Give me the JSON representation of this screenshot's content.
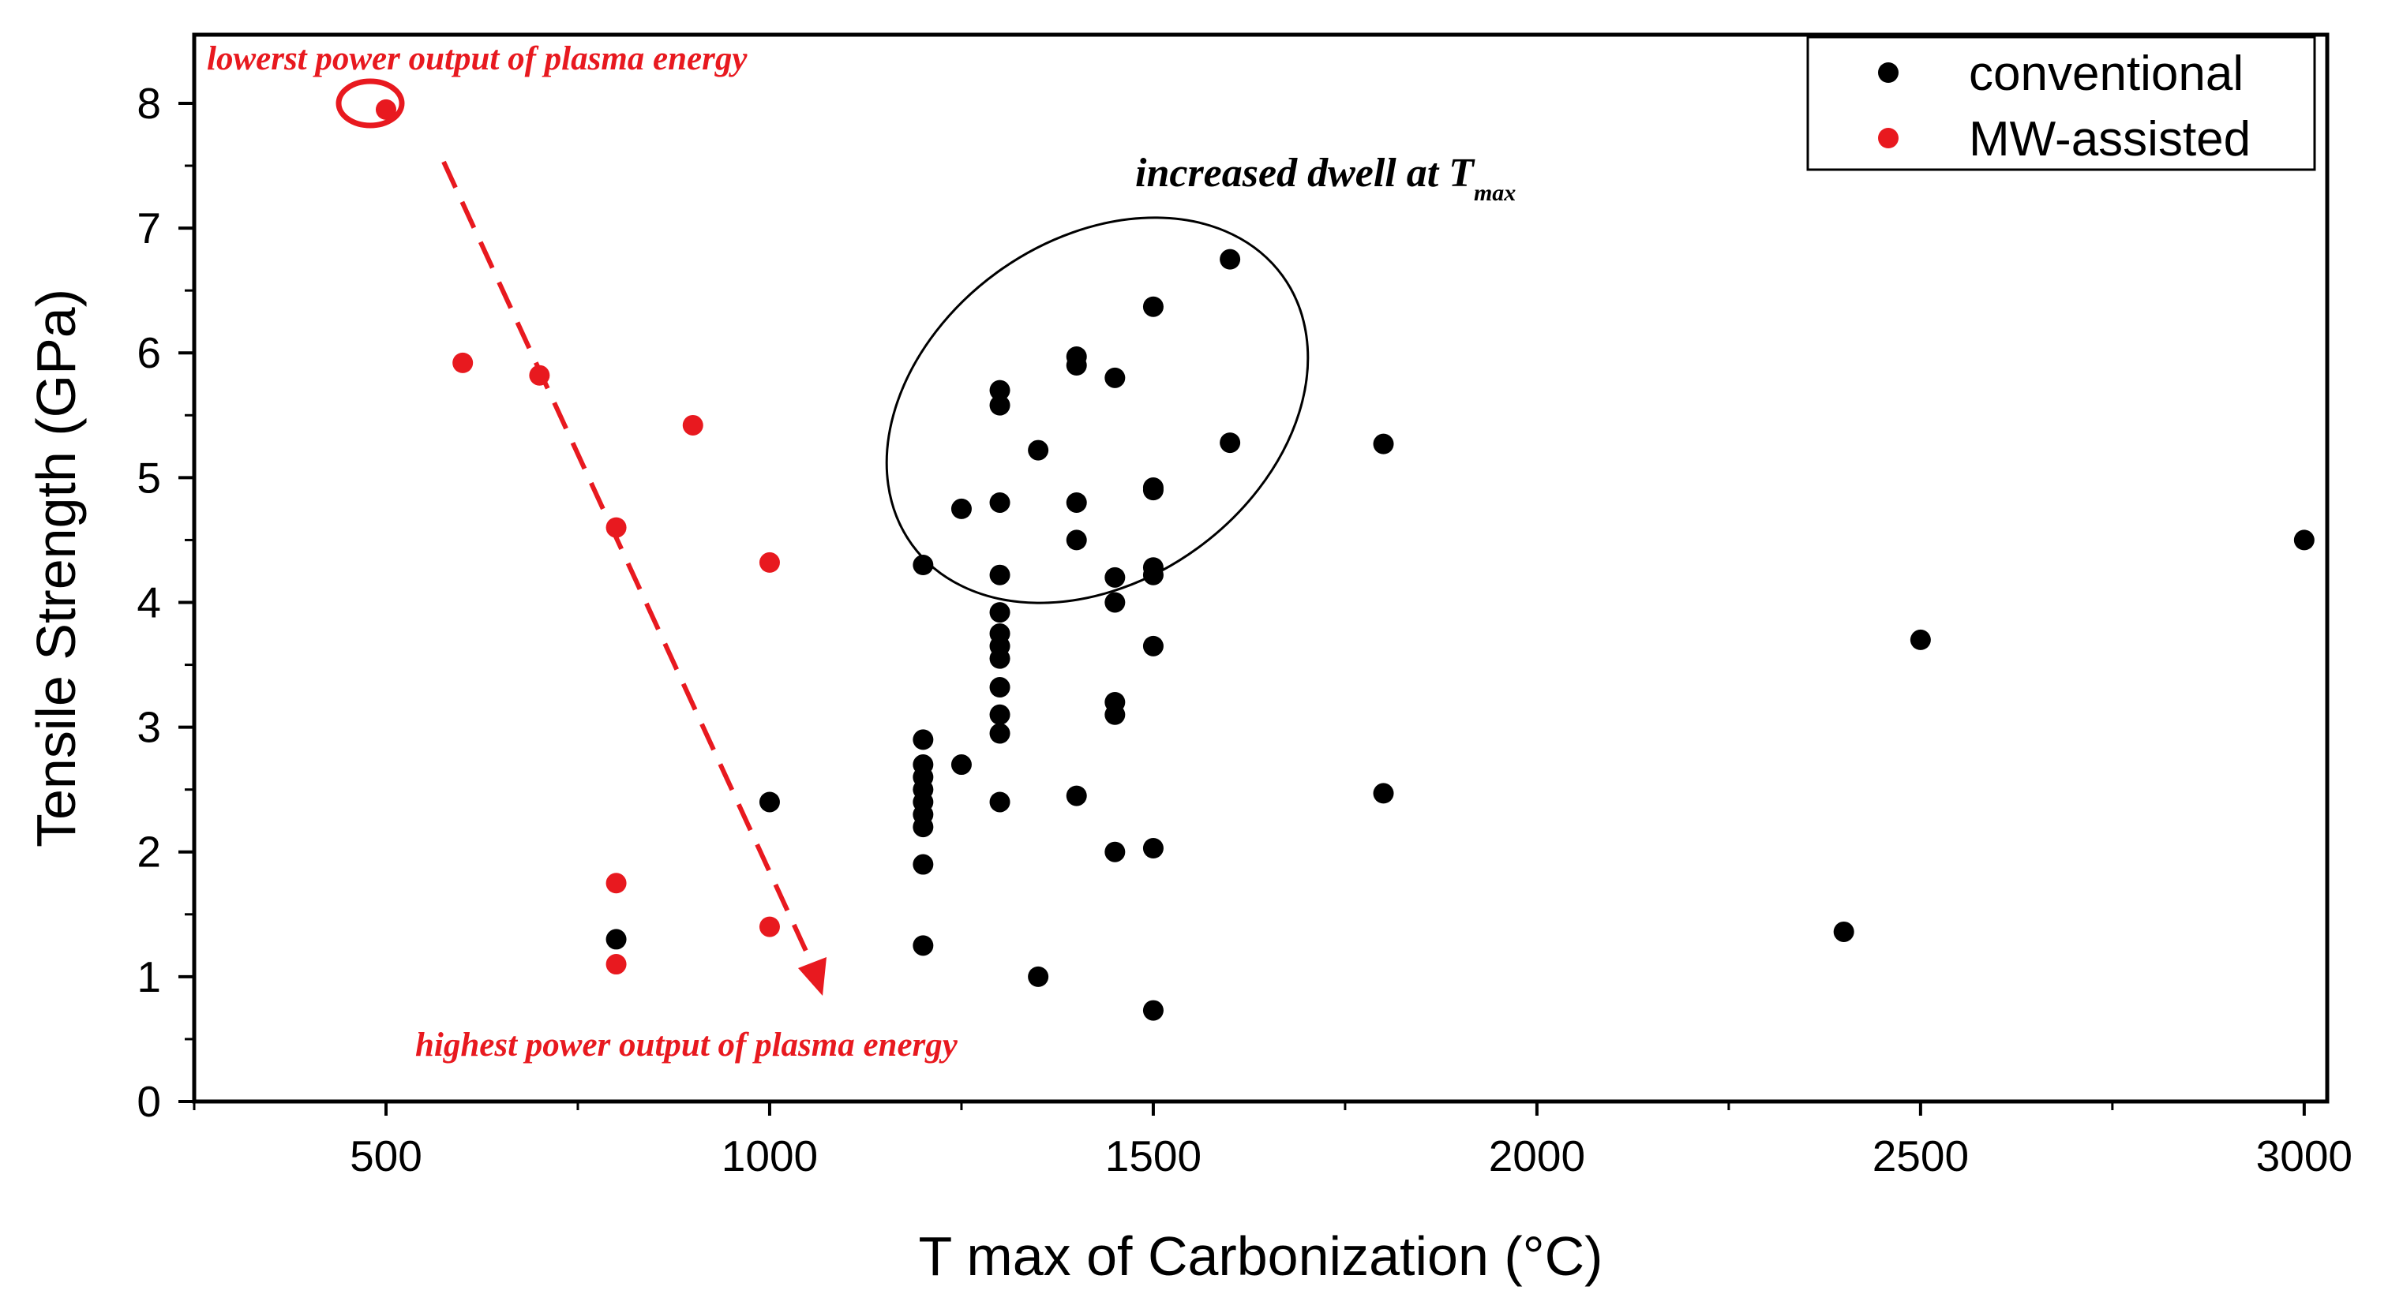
{
  "chart_data": {
    "type": "scatter",
    "xlabel": "T max of Carbonization (°C)",
    "ylabel": "Tensile Strength (GPa)",
    "xlim": [
      250,
      3030
    ],
    "ylim": [
      0,
      8.55
    ],
    "x_ticks": [
      500,
      1000,
      1500,
      2000,
      2500,
      3000
    ],
    "y_ticks": [
      0,
      1,
      2,
      3,
      4,
      5,
      6,
      7,
      8
    ],
    "grid": false,
    "legend_position": "top-right",
    "series": [
      {
        "name": "conventional",
        "color": "#000000",
        "points": [
          [
            800,
            1.3
          ],
          [
            1000,
            2.4
          ],
          [
            1200,
            4.3
          ],
          [
            1200,
            2.9
          ],
          [
            1200,
            2.7
          ],
          [
            1200,
            2.6
          ],
          [
            1200,
            2.5
          ],
          [
            1200,
            2.4
          ],
          [
            1200,
            2.3
          ],
          [
            1200,
            2.2
          ],
          [
            1200,
            1.9
          ],
          [
            1200,
            1.25
          ],
          [
            1250,
            4.75
          ],
          [
            1250,
            2.7
          ],
          [
            1300,
            5.7
          ],
          [
            1300,
            5.58
          ],
          [
            1300,
            4.8
          ],
          [
            1300,
            4.22
          ],
          [
            1300,
            3.92
          ],
          [
            1300,
            3.75
          ],
          [
            1300,
            3.65
          ],
          [
            1300,
            3.55
          ],
          [
            1300,
            3.32
          ],
          [
            1300,
            3.1
          ],
          [
            1300,
            2.95
          ],
          [
            1300,
            2.4
          ],
          [
            1350,
            5.22
          ],
          [
            1350,
            1.0
          ],
          [
            1400,
            5.97
          ],
          [
            1400,
            5.9
          ],
          [
            1400,
            4.8
          ],
          [
            1400,
            4.5
          ],
          [
            1400,
            2.45
          ],
          [
            1450,
            5.8
          ],
          [
            1450,
            4.2
          ],
          [
            1450,
            4.0
          ],
          [
            1450,
            3.2
          ],
          [
            1450,
            3.1
          ],
          [
            1450,
            2.0
          ],
          [
            1500,
            6.37
          ],
          [
            1500,
            4.92
          ],
          [
            1500,
            4.9
          ],
          [
            1500,
            4.28
          ],
          [
            1500,
            4.22
          ],
          [
            1500,
            3.65
          ],
          [
            1500,
            2.03
          ],
          [
            1500,
            0.73
          ],
          [
            1600,
            6.75
          ],
          [
            1600,
            5.28
          ],
          [
            1800,
            5.27
          ],
          [
            1800,
            2.47
          ],
          [
            2400,
            1.36
          ],
          [
            2500,
            3.7
          ],
          [
            3000,
            4.5
          ]
        ]
      },
      {
        "name": "MW-assisted",
        "color": "#e8191f",
        "points": [
          [
            500,
            7.95
          ],
          [
            600,
            5.92
          ],
          [
            700,
            5.82
          ],
          [
            900,
            5.42
          ],
          [
            800,
            4.6
          ],
          [
            1000,
            4.32
          ],
          [
            800,
            1.75
          ],
          [
            800,
            1.1
          ],
          [
            1000,
            1.4
          ]
        ]
      }
    ],
    "annotations": {
      "lowest_power": "lowerst power output of plasma energy",
      "highest_power": "highest power output of plasma energy",
      "dwell_text": "increased dwell at T",
      "dwell_subscript": "max"
    }
  }
}
